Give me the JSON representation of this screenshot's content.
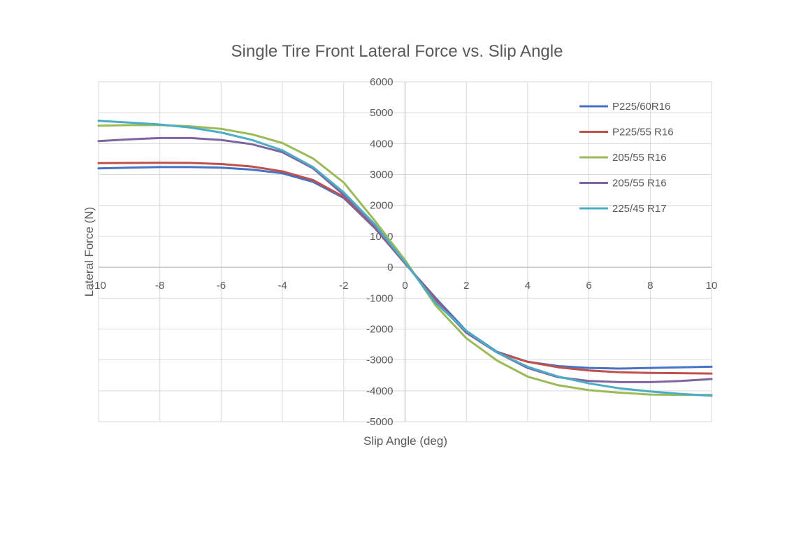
{
  "chart_data": {
    "type": "line",
    "title": "Single Tire Front Lateral Force vs. Slip Angle",
    "xlabel": "Slip Angle (deg)",
    "ylabel": "Lateral Force (N)",
    "xlim": [
      -10,
      10
    ],
    "ylim": [
      -5000,
      6000
    ],
    "x_ticks": [
      -10,
      -8,
      -6,
      -4,
      -2,
      0,
      2,
      4,
      6,
      8,
      10
    ],
    "y_ticks": [
      -5000,
      -4000,
      -3000,
      -2000,
      -1000,
      0,
      1000,
      2000,
      3000,
      4000,
      5000,
      6000
    ],
    "x_tick_labels": [
      "-10",
      "-8",
      "-6",
      "-4",
      "-2",
      "0",
      "2",
      "4",
      "6",
      "8",
      "10"
    ],
    "y_tick_labels": [
      "-5000",
      "-4000",
      "-3000",
      "-2000",
      "-1000",
      "0",
      "1000",
      "2000",
      "3000",
      "4000",
      "5000",
      "6000"
    ],
    "grid": true,
    "legend_position": "top-right",
    "x": [
      -10,
      -9,
      -8,
      -7,
      -6,
      -5,
      -4,
      -3,
      -2,
      -1,
      0,
      1,
      2,
      3,
      4,
      5,
      6,
      7,
      8,
      9,
      10
    ],
    "series": [
      {
        "name": "P225/60R16",
        "color": "#4472c4",
        "values": [
          3200,
          3220,
          3240,
          3240,
          3220,
          3160,
          3040,
          2760,
          2240,
          1280,
          120,
          -1000,
          -2060,
          -2740,
          -3060,
          -3200,
          -3260,
          -3280,
          -3260,
          -3240,
          -3220
        ]
      },
      {
        "name": "P225/55 R16",
        "color": "#c0504d",
        "values": [
          3370,
          3375,
          3380,
          3375,
          3340,
          3260,
          3100,
          2820,
          2280,
          1300,
          130,
          -1050,
          -2120,
          -2760,
          -3060,
          -3240,
          -3340,
          -3400,
          -3420,
          -3430,
          -3440
        ]
      },
      {
        "name": "205/55 R16",
        "color": "#9bbb59",
        "values": [
          4580,
          4600,
          4600,
          4560,
          4480,
          4300,
          4020,
          3520,
          2740,
          1520,
          230,
          -1240,
          -2300,
          -3020,
          -3540,
          -3820,
          -3980,
          -4060,
          -4120,
          -4130,
          -4130
        ]
      },
      {
        "name": "205/55 R16",
        "color": "#8064a2",
        "values": [
          4080,
          4140,
          4180,
          4180,
          4120,
          3980,
          3720,
          3200,
          2340,
          1330,
          150,
          -1100,
          -2120,
          -2760,
          -3260,
          -3560,
          -3680,
          -3720,
          -3720,
          -3680,
          -3620
        ]
      },
      {
        "name": "225/45 R17",
        "color": "#4bacc6",
        "values": [
          4740,
          4680,
          4620,
          4520,
          4360,
          4120,
          3780,
          3240,
          2420,
          1400,
          160,
          -1160,
          -2060,
          -2760,
          -3220,
          -3540,
          -3760,
          -3920,
          -4020,
          -4100,
          -4160
        ]
      }
    ]
  }
}
